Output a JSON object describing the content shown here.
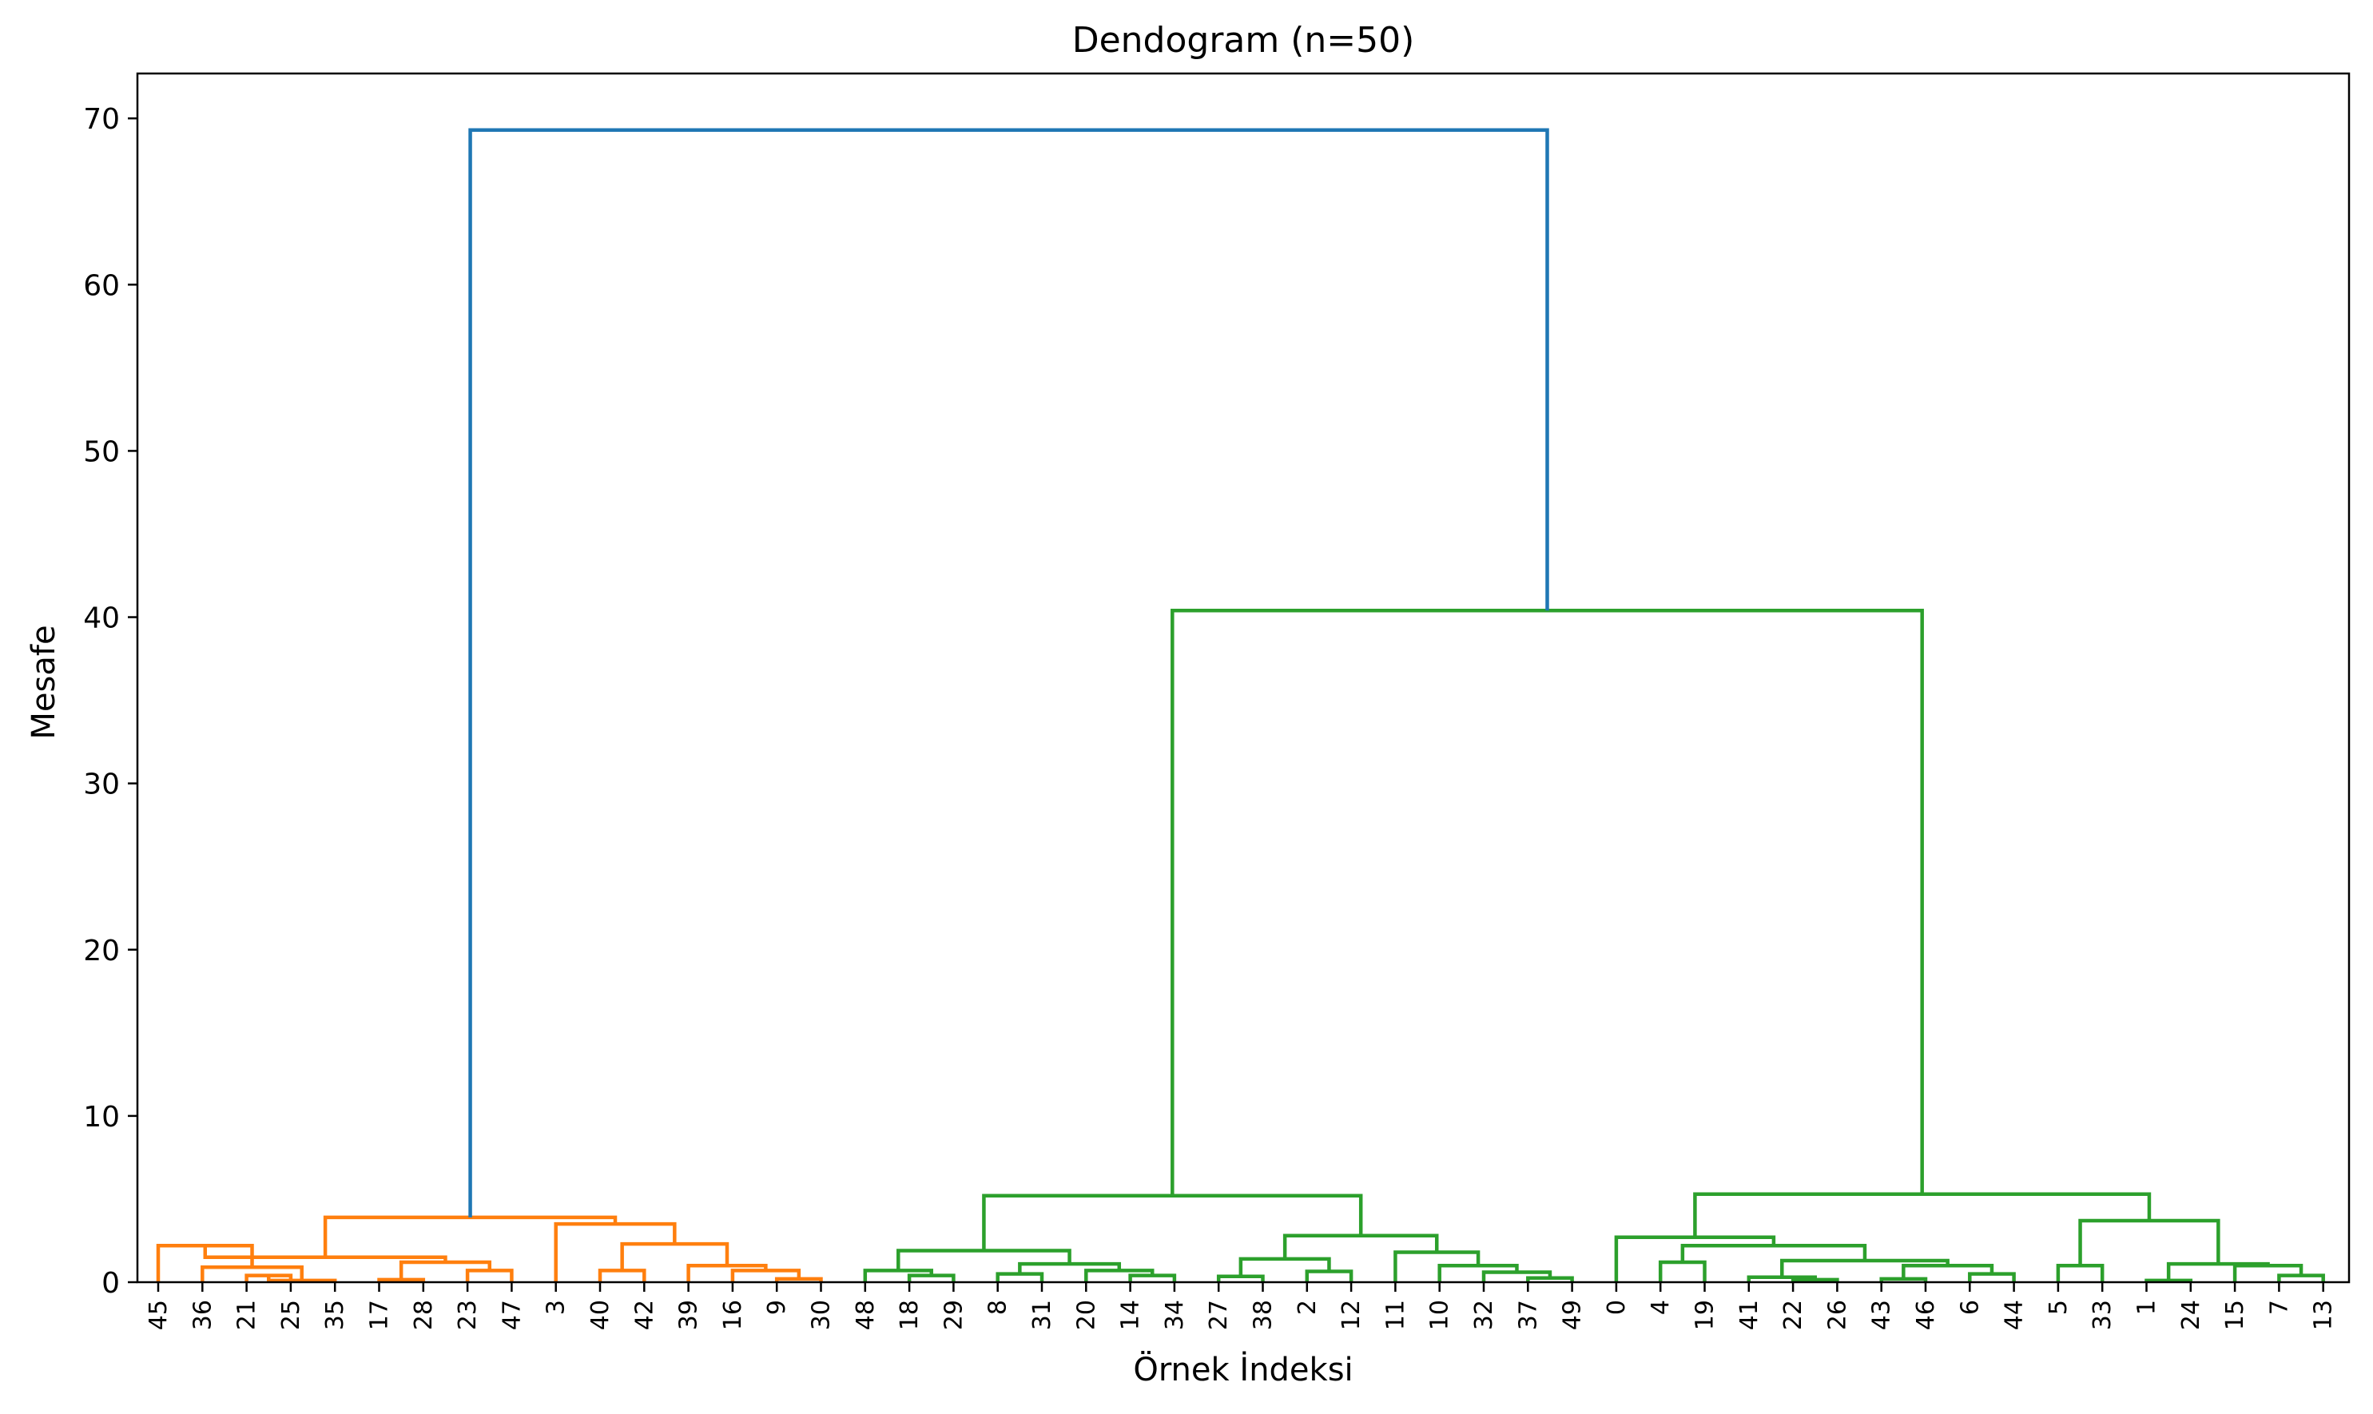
{
  "chart_data": {
    "type": "dendrogram",
    "title": "Dendogram (n=50)",
    "xlabel": "Örnek İndeksi",
    "ylabel": "Mesafe",
    "ylim": [
      0,
      72.7
    ],
    "yticks": [
      0,
      10,
      20,
      30,
      40,
      50,
      60,
      70
    ],
    "grid": false,
    "leaves": [
      "45",
      "36",
      "21",
      "25",
      "35",
      "17",
      "28",
      "23",
      "47",
      "3",
      "40",
      "42",
      "39",
      "16",
      "9",
      "30",
      "48",
      "18",
      "29",
      "8",
      "31",
      "20",
      "14",
      "34",
      "27",
      "38",
      "2",
      "12",
      "11",
      "10",
      "32",
      "37",
      "49",
      "0",
      "4",
      "19",
      "41",
      "22",
      "26",
      "43",
      "46",
      "6",
      "44",
      "5",
      "33",
      "1",
      "24",
      "15",
      "7",
      "13"
    ],
    "colors": {
      "cluster_1": "#ff7f0e",
      "cluster_2": "#2ca02c",
      "above_threshold": "#1f77b4"
    },
    "links": [
      {
        "left": [
          "leaf",
          "21"
        ],
        "right": [
          "leaf",
          "25"
        ],
        "height": 0.4,
        "color": "cluster_1"
      },
      {
        "left": [
          "link",
          0
        ],
        "right": [
          "leaf",
          "35"
        ],
        "height": 0.1,
        "color": "cluster_1"
      },
      {
        "left": [
          "leaf",
          "36"
        ],
        "right": [
          "link",
          1
        ],
        "height": 0.9,
        "color": "cluster_1"
      },
      {
        "left": [
          "leaf",
          "45"
        ],
        "right": [
          "link",
          2
        ],
        "height": 2.2,
        "color": "cluster_1"
      },
      {
        "left": [
          "leaf",
          "17"
        ],
        "right": [
          "leaf",
          "28"
        ],
        "height": 0.15,
        "color": "cluster_1"
      },
      {
        "left": [
          "leaf",
          "23"
        ],
        "right": [
          "leaf",
          "47"
        ],
        "height": 0.7,
        "color": "cluster_1"
      },
      {
        "left": [
          "link",
          4
        ],
        "right": [
          "link",
          5
        ],
        "height": 1.2,
        "color": "cluster_1"
      },
      {
        "left": [
          "link",
          3
        ],
        "right": [
          "link",
          6
        ],
        "height": 1.5,
        "color": "cluster_1"
      },
      {
        "left": [
          "leaf",
          "9"
        ],
        "right": [
          "leaf",
          "30"
        ],
        "height": 0.2,
        "color": "cluster_1"
      },
      {
        "left": [
          "leaf",
          "16"
        ],
        "right": [
          "link",
          8
        ],
        "height": 0.7,
        "color": "cluster_1"
      },
      {
        "left": [
          "leaf",
          "39"
        ],
        "right": [
          "link",
          9
        ],
        "height": 1.0,
        "color": "cluster_1"
      },
      {
        "left": [
          "leaf",
          "40"
        ],
        "right": [
          "leaf",
          "42"
        ],
        "height": 0.7,
        "color": "cluster_1"
      },
      {
        "left": [
          "link",
          11
        ],
        "right": [
          "link",
          10
        ],
        "height": 2.3,
        "color": "cluster_1"
      },
      {
        "left": [
          "leaf",
          "3"
        ],
        "right": [
          "link",
          12
        ],
        "height": 3.5,
        "color": "cluster_1"
      },
      {
        "left": [
          "link",
          7
        ],
        "right": [
          "link",
          13
        ],
        "height": 3.9,
        "color": "cluster_1"
      },
      {
        "left": [
          "leaf",
          "18"
        ],
        "right": [
          "leaf",
          "29"
        ],
        "height": 0.4,
        "color": "cluster_2"
      },
      {
        "left": [
          "leaf",
          "48"
        ],
        "right": [
          "link",
          15
        ],
        "height": 0.7,
        "color": "cluster_2"
      },
      {
        "left": [
          "leaf",
          "8"
        ],
        "right": [
          "leaf",
          "31"
        ],
        "height": 0.5,
        "color": "cluster_2"
      },
      {
        "left": [
          "leaf",
          "14"
        ],
        "right": [
          "leaf",
          "34"
        ],
        "height": 0.4,
        "color": "cluster_2"
      },
      {
        "left": [
          "leaf",
          "20"
        ],
        "right": [
          "link",
          18
        ],
        "height": 0.7,
        "color": "cluster_2"
      },
      {
        "left": [
          "link",
          17
        ],
        "right": [
          "link",
          19
        ],
        "height": 1.1,
        "color": "cluster_2"
      },
      {
        "left": [
          "link",
          16
        ],
        "right": [
          "link",
          20
        ],
        "height": 1.9,
        "color": "cluster_2"
      },
      {
        "left": [
          "leaf",
          "27"
        ],
        "right": [
          "leaf",
          "38"
        ],
        "height": 0.35,
        "color": "cluster_2"
      },
      {
        "left": [
          "leaf",
          "2"
        ],
        "right": [
          "leaf",
          "12"
        ],
        "height": 0.65,
        "color": "cluster_2"
      },
      {
        "left": [
          "link",
          22
        ],
        "right": [
          "link",
          23
        ],
        "height": 1.4,
        "color": "cluster_2"
      },
      {
        "left": [
          "leaf",
          "37"
        ],
        "right": [
          "leaf",
          "49"
        ],
        "height": 0.25,
        "color": "cluster_2"
      },
      {
        "left": [
          "leaf",
          "32"
        ],
        "right": [
          "link",
          25
        ],
        "height": 0.6,
        "color": "cluster_2"
      },
      {
        "left": [
          "leaf",
          "10"
        ],
        "right": [
          "link",
          26
        ],
        "height": 1.0,
        "color": "cluster_2"
      },
      {
        "left": [
          "leaf",
          "11"
        ],
        "right": [
          "link",
          27
        ],
        "height": 1.8,
        "color": "cluster_2"
      },
      {
        "left": [
          "link",
          24
        ],
        "right": [
          "link",
          28
        ],
        "height": 2.8,
        "color": "cluster_2"
      },
      {
        "left": [
          "link",
          21
        ],
        "right": [
          "link",
          29
        ],
        "height": 5.2,
        "color": "cluster_2"
      },
      {
        "left": [
          "leaf",
          "4"
        ],
        "right": [
          "leaf",
          "19"
        ],
        "height": 1.2,
        "color": "cluster_2"
      },
      {
        "left": [
          "leaf",
          "22"
        ],
        "right": [
          "leaf",
          "26"
        ],
        "height": 0.15,
        "color": "cluster_2"
      },
      {
        "left": [
          "leaf",
          "41"
        ],
        "right": [
          "link",
          32
        ],
        "height": 0.3,
        "color": "cluster_2"
      },
      {
        "left": [
          "leaf",
          "43"
        ],
        "right": [
          "leaf",
          "46"
        ],
        "height": 0.2,
        "color": "cluster_2"
      },
      {
        "left": [
          "leaf",
          "6"
        ],
        "right": [
          "leaf",
          "44"
        ],
        "height": 0.5,
        "color": "cluster_2"
      },
      {
        "left": [
          "link",
          34
        ],
        "right": [
          "link",
          35
        ],
        "height": 1.0,
        "color": "cluster_2"
      },
      {
        "left": [
          "link",
          33
        ],
        "right": [
          "link",
          36
        ],
        "height": 1.3,
        "color": "cluster_2"
      },
      {
        "left": [
          "link",
          31
        ],
        "right": [
          "link",
          37
        ],
        "height": 2.2,
        "color": "cluster_2"
      },
      {
        "left": [
          "leaf",
          "0"
        ],
        "right": [
          "link",
          38
        ],
        "height": 2.7,
        "color": "cluster_2"
      },
      {
        "left": [
          "leaf",
          "5"
        ],
        "right": [
          "leaf",
          "33"
        ],
        "height": 1.0,
        "color": "cluster_2"
      },
      {
        "left": [
          "leaf",
          "1"
        ],
        "right": [
          "leaf",
          "24"
        ],
        "height": 0.1,
        "color": "cluster_2"
      },
      {
        "left": [
          "leaf",
          "7"
        ],
        "right": [
          "leaf",
          "13"
        ],
        "height": 0.4,
        "color": "cluster_2"
      },
      {
        "left": [
          "leaf",
          "15"
        ],
        "right": [
          "link",
          42
        ],
        "height": 1.0,
        "color": "cluster_2"
      },
      {
        "left": [
          "link",
          41
        ],
        "right": [
          "link",
          43
        ],
        "height": 1.1,
        "color": "cluster_2"
      },
      {
        "left": [
          "link",
          40
        ],
        "right": [
          "link",
          44
        ],
        "height": 3.7,
        "color": "cluster_2"
      },
      {
        "left": [
          "link",
          39
        ],
        "right": [
          "link",
          45
        ],
        "height": 5.3,
        "color": "cluster_2"
      },
      {
        "left": [
          "link",
          30
        ],
        "right": [
          "link",
          46
        ],
        "height": 40.4,
        "color": "cluster_2"
      },
      {
        "left": [
          "link",
          14
        ],
        "right": [
          "link",
          47
        ],
        "height": 69.3,
        "color": "above_threshold"
      }
    ]
  }
}
